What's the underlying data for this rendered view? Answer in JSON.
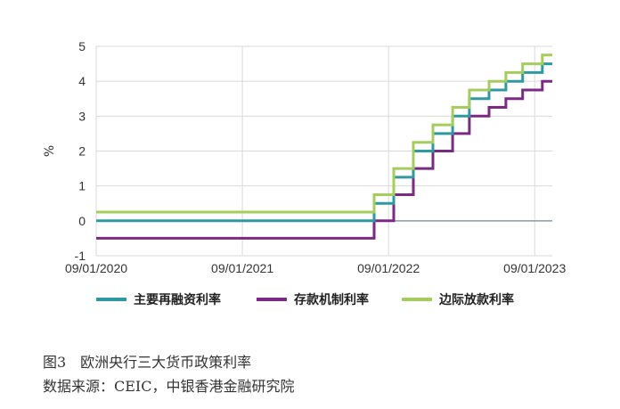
{
  "caption": {
    "figure_title": "图3　欧洲央行三大货币政策利率",
    "source": "数据来源：CEIC，中银香港金融研究院"
  },
  "chart_data": {
    "type": "line",
    "title": "",
    "xlabel": "",
    "ylabel": "%",
    "ylim": [
      -1,
      5
    ],
    "yticks": [
      -1,
      0,
      1,
      2,
      3,
      4,
      5
    ],
    "xlim": [
      "2020-09-01",
      "2023-10-15"
    ],
    "xticks": [
      "2020-09-01",
      "2021-09-01",
      "2022-09-01",
      "2023-09-01"
    ],
    "xtick_labels": [
      "09/01/2020",
      "09/01/2021",
      "09/01/2022",
      "09/01/2023"
    ],
    "grid": true,
    "legend_position": "bottom",
    "step": true,
    "series": [
      {
        "name": "主要再融资利率",
        "color": "#2e9aa0",
        "points": [
          [
            "2020-09-01",
            0
          ],
          [
            "2022-07-27",
            0.5
          ],
          [
            "2022-09-14",
            1.25
          ],
          [
            "2022-11-02",
            2.0
          ],
          [
            "2022-12-21",
            2.5
          ],
          [
            "2023-02-08",
            3.0
          ],
          [
            "2023-03-22",
            3.5
          ],
          [
            "2023-05-10",
            3.75
          ],
          [
            "2023-06-21",
            4.0
          ],
          [
            "2023-08-02",
            4.25
          ],
          [
            "2023-09-20",
            4.5
          ],
          [
            "2023-10-15",
            4.5
          ]
        ]
      },
      {
        "name": "存款机制利率",
        "color": "#7b2a83",
        "points": [
          [
            "2020-09-01",
            -0.5
          ],
          [
            "2022-07-27",
            0
          ],
          [
            "2022-09-14",
            0.75
          ],
          [
            "2022-11-02",
            1.5
          ],
          [
            "2022-12-21",
            2.0
          ],
          [
            "2023-02-08",
            2.5
          ],
          [
            "2023-03-22",
            3.0
          ],
          [
            "2023-05-10",
            3.25
          ],
          [
            "2023-06-21",
            3.5
          ],
          [
            "2023-08-02",
            3.75
          ],
          [
            "2023-09-20",
            4.0
          ],
          [
            "2023-10-15",
            4.0
          ]
        ]
      },
      {
        "name": "边际放款利率",
        "color": "#a5cc5d",
        "points": [
          [
            "2020-09-01",
            0.25
          ],
          [
            "2022-07-27",
            0.75
          ],
          [
            "2022-09-14",
            1.5
          ],
          [
            "2022-11-02",
            2.25
          ],
          [
            "2022-12-21",
            2.75
          ],
          [
            "2023-02-08",
            3.25
          ],
          [
            "2023-03-22",
            3.75
          ],
          [
            "2023-05-10",
            4.0
          ],
          [
            "2023-06-21",
            4.25
          ],
          [
            "2023-08-02",
            4.5
          ],
          [
            "2023-09-20",
            4.75
          ],
          [
            "2023-10-15",
            4.75
          ]
        ]
      }
    ]
  }
}
